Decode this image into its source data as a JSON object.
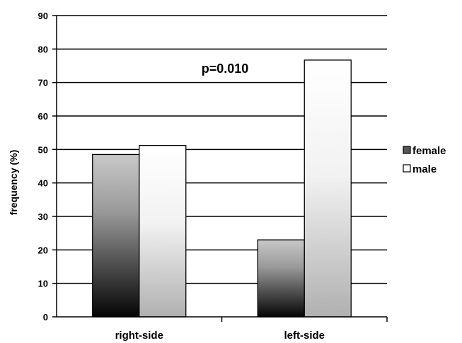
{
  "chart_data": {
    "type": "bar",
    "categories": [
      "right-side",
      "left-side"
    ],
    "series": [
      {
        "name": "female",
        "values": [
          48.5,
          23
        ]
      },
      {
        "name": "male",
        "values": [
          51.2,
          76.7
        ]
      }
    ],
    "ylabel": "frequency (%)",
    "ylim": [
      0,
      90
    ],
    "yticks": [
      0,
      10,
      20,
      30,
      40,
      50,
      60,
      70,
      80,
      90
    ],
    "annotation": "p=0.010",
    "grid": true,
    "legend_position": "right"
  }
}
